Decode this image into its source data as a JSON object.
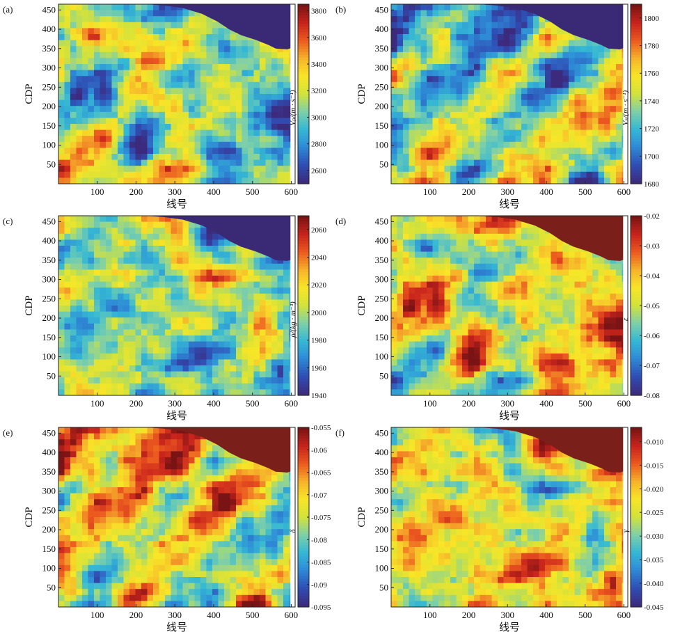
{
  "colormap": [
    "#3c2a7c",
    "#2f4fb5",
    "#2e8ad6",
    "#35b8d4",
    "#7fd0a8",
    "#d2e23b",
    "#f8e627",
    "#f6b32b",
    "#ec5a1f",
    "#c8241c",
    "#7a1414"
  ],
  "mask_colors": {
    "low": "#3a2a75",
    "high": "#7a1f1a"
  },
  "chart_data": [
    {
      "type": "heatmap",
      "panel": "(a)",
      "xlabel": "线号",
      "ylabel": "CDP",
      "xlim": [
        0,
        610
      ],
      "ylim": [
        0,
        465
      ],
      "xticks": [
        "100",
        "200",
        "300",
        "400",
        "500",
        "600"
      ],
      "yticks": [
        "50",
        "100",
        "150",
        "200",
        "250",
        "300",
        "350",
        "400",
        "450"
      ],
      "colorbar_label": "Vₚ/(m · s⁻¹)",
      "colorbar_ticks": [
        "3800",
        "3600",
        "3400",
        "3200",
        "3000",
        "2800",
        "2600"
      ],
      "colorbar_range": [
        2500,
        3850
      ],
      "mask_side": "low"
    },
    {
      "type": "heatmap",
      "panel": "(b)",
      "xlabel": "线号",
      "ylabel": "CDP",
      "xlim": [
        0,
        610
      ],
      "ylim": [
        0,
        465
      ],
      "xticks": [
        "100",
        "200",
        "300",
        "400",
        "500",
        "600"
      ],
      "yticks": [
        "50",
        "100",
        "150",
        "200",
        "250",
        "300",
        "350",
        "400",
        "450"
      ],
      "colorbar_label": "Vₛ/(m · s⁻¹)",
      "colorbar_ticks": [
        "1800",
        "1780",
        "1760",
        "1740",
        "1720",
        "1700",
        "1680"
      ],
      "colorbar_range": [
        1680,
        1810
      ],
      "mask_side": "low"
    },
    {
      "type": "heatmap",
      "panel": "(c)",
      "xlabel": "线号",
      "ylabel": "CDP",
      "xlim": [
        0,
        610
      ],
      "ylim": [
        0,
        465
      ],
      "xticks": [
        "100",
        "200",
        "300",
        "400",
        "500",
        "600"
      ],
      "yticks": [
        "50",
        "100",
        "150",
        "200",
        "250",
        "300",
        "350",
        "400",
        "450"
      ],
      "colorbar_label": "ρ/(kg · m⁻³)",
      "colorbar_ticks": [
        "2060",
        "2040",
        "2020",
        "2000",
        "1980",
        "1960",
        "1940"
      ],
      "colorbar_range": [
        1940,
        2070
      ],
      "mask_side": "low"
    },
    {
      "type": "heatmap",
      "panel": "(d)",
      "xlabel": "线号",
      "ylabel": "CDP",
      "xlim": [
        0,
        610
      ],
      "ylim": [
        0,
        465
      ],
      "xticks": [
        "100",
        "200",
        "300",
        "400",
        "500",
        "600"
      ],
      "yticks": [
        "50",
        "100",
        "150",
        "200",
        "250",
        "300",
        "350",
        "400",
        "450"
      ],
      "colorbar_label": "ε",
      "colorbar_ticks": [
        "-0.02",
        "-0.03",
        "-0.04",
        "-0.05",
        "-0.06",
        "-0.07",
        "-0.08"
      ],
      "colorbar_range": [
        -0.08,
        -0.02
      ],
      "mask_side": "high"
    },
    {
      "type": "heatmap",
      "panel": "(e)",
      "xlabel": "线号",
      "ylabel": "CDP",
      "xlim": [
        0,
        610
      ],
      "ylim": [
        0,
        465
      ],
      "xticks": [
        "100",
        "200",
        "300",
        "400",
        "500",
        "600"
      ],
      "yticks": [
        "50",
        "100",
        "150",
        "200",
        "250",
        "300",
        "350",
        "400",
        "450"
      ],
      "colorbar_label": "δ",
      "colorbar_ticks": [
        "-0.055",
        "-0.06",
        "-0.065",
        "-0.07",
        "-0.075",
        "-0.08",
        "-0.085",
        "-0.09",
        "-0.095"
      ],
      "colorbar_range": [
        -0.095,
        -0.055
      ],
      "mask_side": "high"
    },
    {
      "type": "heatmap",
      "panel": "(f)",
      "xlabel": "线号",
      "ylabel": "CDP",
      "xlim": [
        0,
        610
      ],
      "ylim": [
        0,
        465
      ],
      "xticks": [
        "100",
        "200",
        "300",
        "400",
        "500",
        "600"
      ],
      "yticks": [
        "50",
        "100",
        "150",
        "200",
        "250",
        "300",
        "350",
        "400",
        "450"
      ],
      "colorbar_label": "γ",
      "colorbar_ticks": [
        "-0.010",
        "-0.015",
        "-0.020",
        "-0.025",
        "-0.030",
        "-0.035",
        "-0.040",
        "-0.045"
      ],
      "colorbar_range": [
        -0.045,
        -0.007
      ],
      "mask_side": "high"
    }
  ]
}
